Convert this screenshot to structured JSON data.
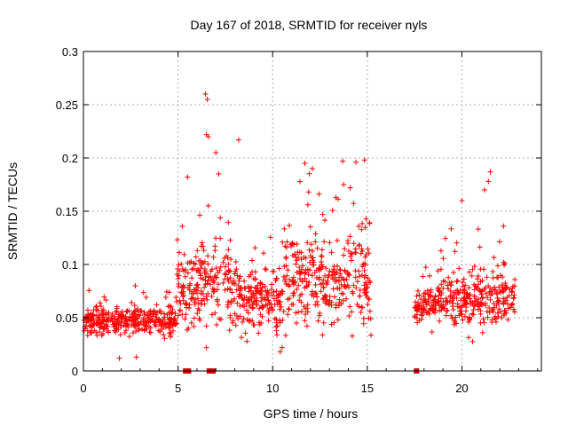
{
  "chart_data": {
    "type": "scatter",
    "title": "Day 167 of 2018, SRMTID for receiver nyls",
    "xlabel": "GPS time / hours",
    "ylabel": "SRMTID / TECUs",
    "xlim": [
      0,
      24.2
    ],
    "ylim": [
      0,
      0.3
    ],
    "xticks": [
      0,
      5,
      10,
      15,
      20
    ],
    "xtick_labels": [
      "0",
      "5",
      "10",
      "15",
      "20"
    ],
    "yticks": [
      0,
      0.05,
      0.1,
      0.15,
      0.2,
      0.25,
      0.3
    ],
    "ytick_labels": [
      "0",
      "0.05",
      "0.1",
      "0.15",
      "0.2",
      "0.25",
      "0.3"
    ],
    "grid": true,
    "marker": "+",
    "color": "#ff0000",
    "series": [
      {
        "name": "SRMTID",
        "segments": [
          {
            "x": [
              0.0,
              4.9
            ],
            "center": 0.047,
            "spread": 0.012
          },
          {
            "x": [
              4.9,
              6.0
            ],
            "center": 0.075,
            "spread": 0.03
          },
          {
            "x": [
              6.0,
              7.8
            ],
            "center": 0.085,
            "spread": 0.035
          },
          {
            "x": [
              7.8,
              10.5
            ],
            "center": 0.068,
            "spread": 0.025
          },
          {
            "x": [
              10.5,
              15.2
            ],
            "center": 0.085,
            "spread": 0.035
          },
          {
            "x": [
              17.5,
              19.0
            ],
            "center": 0.063,
            "spread": 0.015
          },
          {
            "x": [
              19.0,
              22.8
            ],
            "center": 0.068,
            "spread": 0.022
          }
        ],
        "peaks": [
          {
            "x": 6.45,
            "y": 0.26
          },
          {
            "x": 6.55,
            "y": 0.255
          },
          {
            "x": 6.5,
            "y": 0.222
          },
          {
            "x": 6.6,
            "y": 0.22
          },
          {
            "x": 8.2,
            "y": 0.217
          },
          {
            "x": 7.0,
            "y": 0.205
          },
          {
            "x": 7.15,
            "y": 0.185
          },
          {
            "x": 5.5,
            "y": 0.182
          },
          {
            "x": 11.7,
            "y": 0.195
          },
          {
            "x": 12.1,
            "y": 0.19
          },
          {
            "x": 13.7,
            "y": 0.197
          },
          {
            "x": 14.4,
            "y": 0.196
          },
          {
            "x": 21.5,
            "y": 0.187
          },
          {
            "x": 21.4,
            "y": 0.178
          },
          {
            "x": 21.2,
            "y": 0.17
          },
          {
            "x": 13.75,
            "y": 0.175
          },
          {
            "x": 11.9,
            "y": 0.168
          },
          {
            "x": 14.1,
            "y": 0.172
          },
          {
            "x": 20.0,
            "y": 0.16
          },
          {
            "x": 22.2,
            "y": 0.136
          }
        ],
        "lows": [
          {
            "x": 10.4,
            "y": 0.018
          },
          {
            "x": 10.5,
            "y": 0.022
          },
          {
            "x": 6.5,
            "y": 0.022
          },
          {
            "x": 1.9,
            "y": 0.012
          },
          {
            "x": 2.8,
            "y": 0.013
          }
        ]
      }
    ],
    "zero_flags_x": [
      5.4,
      5.55,
      6.65,
      6.85,
      17.6
    ]
  }
}
